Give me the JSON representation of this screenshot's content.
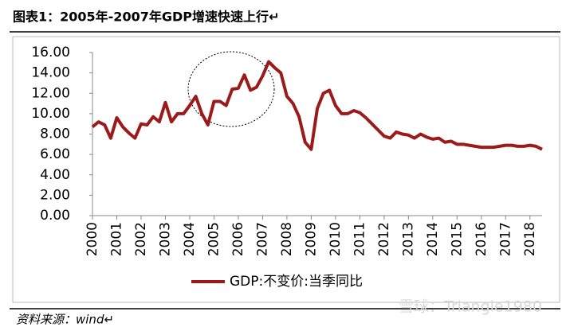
{
  "chart_data": {
    "type": "line",
    "title": "图表1：2005年-2007年GDP增速快速上行↵",
    "source": "资料来源：wind↵",
    "watermark": "雪球：Triangle1980",
    "x": [
      2000,
      2000.25,
      2000.5,
      2000.75,
      2001,
      2001.25,
      2001.5,
      2001.75,
      2002,
      2002.25,
      2002.5,
      2002.75,
      2003,
      2003.25,
      2003.5,
      2003.75,
      2004,
      2004.25,
      2004.5,
      2004.75,
      2005,
      2005.25,
      2005.5,
      2005.75,
      2006,
      2006.25,
      2006.5,
      2006.75,
      2007,
      2007.25,
      2007.5,
      2007.75,
      2008,
      2008.25,
      2008.5,
      2008.75,
      2009,
      2009.25,
      2009.5,
      2009.75,
      2010,
      2010.25,
      2010.5,
      2010.75,
      2011,
      2011.25,
      2011.5,
      2011.75,
      2012,
      2012.25,
      2012.5,
      2012.75,
      2013,
      2013.25,
      2013.5,
      2013.75,
      2014,
      2014.25,
      2014.5,
      2014.75,
      2015,
      2015.25,
      2015.5,
      2015.75,
      2016,
      2016.25,
      2016.5,
      2016.75,
      2017,
      2017.25,
      2017.5,
      2017.75,
      2018,
      2018.25,
      2018.5
    ],
    "series": [
      {
        "name": "GDP:不变价:当季同比",
        "color": "#9b1b1b",
        "values": [
          8.7,
          9.2,
          8.9,
          7.6,
          9.6,
          8.7,
          8.1,
          7.6,
          9.0,
          8.9,
          9.7,
          9.2,
          11.1,
          9.2,
          10.0,
          10.0,
          10.8,
          11.7,
          10.0,
          8.9,
          11.2,
          11.2,
          10.8,
          12.4,
          12.5,
          13.8,
          12.3,
          12.6,
          13.7,
          15.1,
          14.5,
          14.0,
          11.7,
          11.0,
          9.7,
          7.2,
          6.5,
          10.5,
          12.0,
          12.3,
          10.8,
          10.0,
          10.0,
          10.3,
          10.1,
          9.6,
          9.0,
          8.4,
          7.8,
          7.6,
          8.2,
          8.0,
          7.9,
          7.6,
          8.0,
          7.7,
          7.5,
          7.6,
          7.2,
          7.3,
          7.0,
          7.0,
          6.9,
          6.8,
          6.7,
          6.7,
          6.7,
          6.8,
          6.9,
          6.9,
          6.8,
          6.8,
          6.9,
          6.8,
          6.5
        ]
      }
    ],
    "xlim": [
      2000,
      2018.5
    ],
    "xticks": [
      2000,
      2001,
      2002,
      2003,
      2004,
      2005,
      2006,
      2007,
      2008,
      2009,
      2010,
      2011,
      2012,
      2013,
      2014,
      2015,
      2016,
      2017,
      2018
    ],
    "ylim": [
      0,
      16
    ],
    "yticks": [
      {
        "value": 0,
        "label": "0.00"
      },
      {
        "value": 2,
        "label": "2.00"
      },
      {
        "value": 4,
        "label": "4.00"
      },
      {
        "value": 6,
        "label": "6.00"
      },
      {
        "value": 8,
        "label": "8.00"
      },
      {
        "value": 10,
        "label": "10.00"
      },
      {
        "value": 12,
        "label": "12.00"
      },
      {
        "value": 14,
        "label": "14.00"
      },
      {
        "value": 16,
        "label": "16.00"
      }
    ],
    "legend": "bottom"
  }
}
